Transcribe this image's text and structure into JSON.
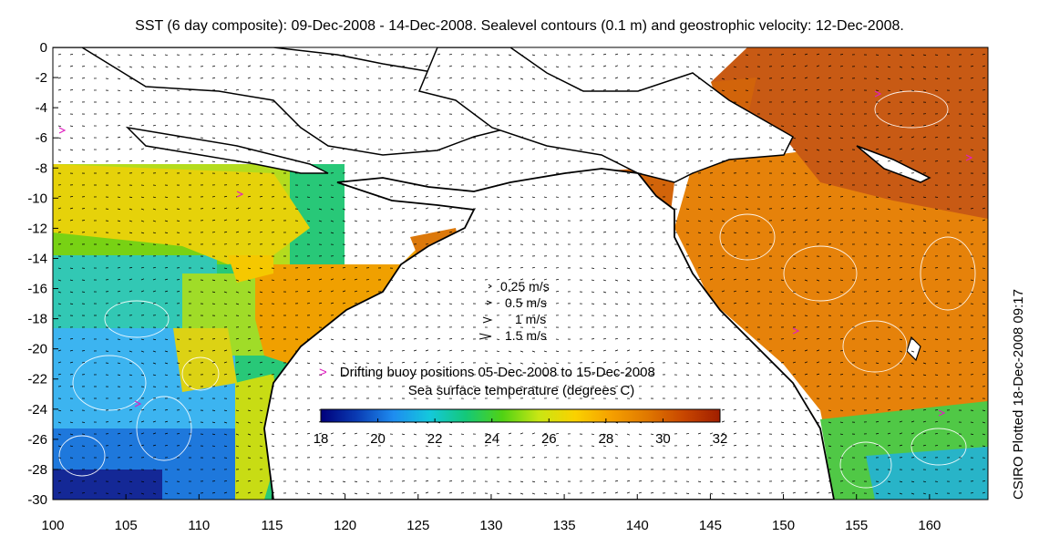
{
  "title": "SST (6 day composite): 09-Dec-2008 - 14-Dec-2008. Sealevel contours (0.1 m) and geostrophic velocity: 12-Dec-2008.",
  "side_label": "CSIRO Plotted 18-Dec-2008 09:17",
  "velocity_legend": [
    "0.25 m/s",
    "0.5 m/s",
    "1 m/s",
    "1.5 m/s"
  ],
  "buoy_marker": ">",
  "buoy_legend": "Drifting buoy positions 05-Dec-2008 to 15-Dec-2008",
  "colorbar": {
    "title": "Sea surface temperature (degrees C)",
    "ticks": [
      "18",
      "20",
      "22",
      "24",
      "26",
      "28",
      "30",
      "32"
    ],
    "min": 18,
    "max": 32,
    "colors": [
      "#00007a",
      "#0a3cb4",
      "#1e8cf0",
      "#14c8dc",
      "#14c878",
      "#50d214",
      "#c8e614",
      "#fad200",
      "#f5a000",
      "#e07800",
      "#c84600",
      "#a01e00"
    ]
  },
  "axes": {
    "x_ticks": [
      "100",
      "105",
      "110",
      "115",
      "120",
      "125",
      "130",
      "135",
      "140",
      "145",
      "150",
      "155",
      "160"
    ],
    "y_ticks": [
      "0",
      "-2",
      "-4",
      "-6",
      "-8",
      "-10",
      "-12",
      "-14",
      "-16",
      "-18",
      "-20",
      "-22",
      "-24",
      "-26",
      "-28",
      "-30"
    ],
    "lon_range": [
      100,
      164
    ],
    "lat_range": [
      -30,
      0
    ]
  },
  "map_features": {
    "land_color": "#ffffff",
    "coastline_color": "#000000",
    "contour_color": "#ffffff",
    "vector_color": "#000000",
    "buoy_color": "#e020c0"
  }
}
